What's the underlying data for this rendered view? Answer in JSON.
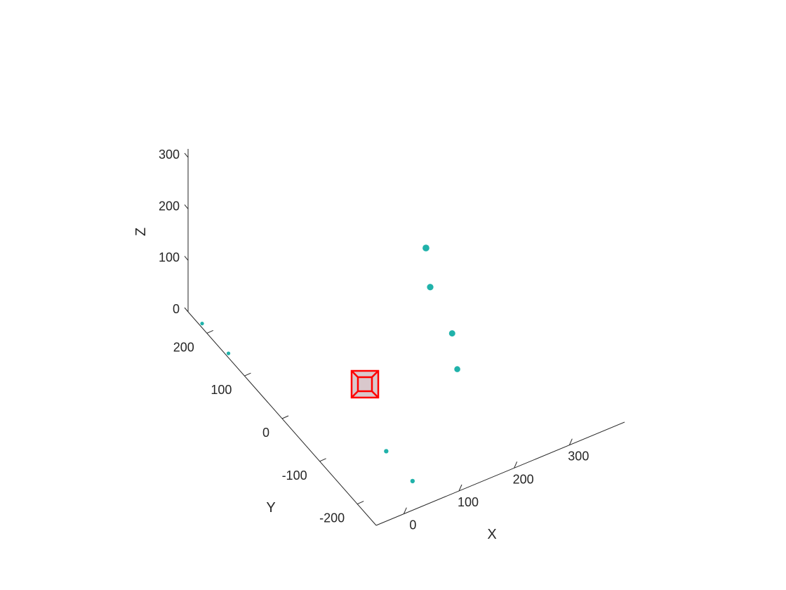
{
  "chart_data": {
    "type": "scatter",
    "view": "3d",
    "grid": false,
    "xlabel": "X",
    "ylabel": "Y",
    "zlabel": "Z",
    "xlim": [
      -50,
      400
    ],
    "ylim": [
      -250,
      250
    ],
    "zlim": [
      0,
      300
    ],
    "xticks": [
      "0",
      "100",
      "200",
      "300"
    ],
    "yticks": [
      "-200",
      "-100",
      "0",
      "100",
      "200"
    ],
    "zticks": [
      "0",
      "100",
      "200",
      "300"
    ],
    "series": [
      {
        "marker": "filled-circle",
        "color": "#20b2aa",
        "points": [
          {
            "x": -45,
            "y": 150,
            "z": 0
          },
          {
            "x": -45,
            "y": 220,
            "z": 0
          },
          {
            "x": 50,
            "y": -200,
            "z": 0
          },
          {
            "x": 50,
            "y": -130,
            "z": 0
          },
          {
            "x": 300,
            "y": 120,
            "z": 0
          },
          {
            "x": 340,
            "y": 190,
            "z": 0
          },
          {
            "x": 240,
            "y": -40,
            "z": 0
          },
          {
            "x": 275,
            "y": 25,
            "z": 0
          }
        ]
      },
      {
        "marker": "cube",
        "color": "#ff0000",
        "face_color": "#d9c8cc",
        "points": [
          {
            "x": 100,
            "y": 0,
            "z": 0
          }
        ]
      }
    ]
  }
}
